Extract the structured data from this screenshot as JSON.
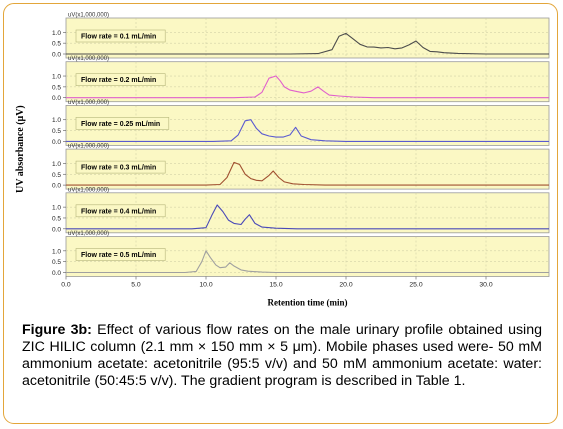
{
  "caption": {
    "label": "Figure 3b:",
    "text": "Effect of various flow rates on the male urinary profile obtained using ZIC HILIC column (2.1 mm × 150 mm × 5 μm). Mobile phases used were- 50 mM ammonium acetate: acetonitrile (95:5 v/v) and 50 mM ammonium acetate: water: acetonitrile (50:45:5 v/v). The gradient program is described in Table 1."
  },
  "chart_data": {
    "type": "line",
    "xlabel": "Retention time (min)",
    "ylabel": "UV absorbance (μV)",
    "y_unit_label": "uV(x1,000,000)",
    "xlim": [
      0,
      34.5
    ],
    "x_ticks": [
      0.0,
      5.0,
      10.0,
      15.0,
      20.0,
      25.0,
      30.0
    ],
    "ylim": [
      0,
      1.2
    ],
    "y_ticks": [
      0.0,
      0.5,
      1.0
    ],
    "grid": true,
    "panel_color": "#fbf8c4",
    "series": [
      {
        "name": "Flow rate = 0.1 mL/min",
        "color": "#4d4d4d",
        "x": [
          16.0,
          18.0,
          19.0,
          19.5,
          20.0,
          20.5,
          21.0,
          21.5,
          22.0,
          22.5,
          23.0,
          23.5,
          24.0,
          24.5,
          25.0,
          25.5,
          26.0,
          26.5,
          27.0,
          28.0,
          30.0
        ],
        "y": [
          0.0,
          0.02,
          0.2,
          0.82,
          0.95,
          0.7,
          0.45,
          0.33,
          0.32,
          0.28,
          0.3,
          0.24,
          0.28,
          0.42,
          0.6,
          0.3,
          0.12,
          0.1,
          0.06,
          0.03,
          0.0
        ]
      },
      {
        "name": "Flow rate = 0.2 mL/min",
        "color": "#e060cc",
        "x": [
          12.0,
          13.5,
          14.0,
          14.5,
          15.0,
          15.3,
          15.6,
          16.0,
          16.5,
          17.0,
          17.5,
          18.0,
          18.4,
          18.8,
          19.5,
          20.5,
          22.0
        ],
        "y": [
          0.0,
          0.03,
          0.25,
          0.9,
          1.0,
          0.78,
          0.5,
          0.35,
          0.28,
          0.22,
          0.3,
          0.5,
          0.3,
          0.12,
          0.08,
          0.03,
          0.0
        ]
      },
      {
        "name": "Flow rate = 0.25 mL/min",
        "color": "#5a5ad0",
        "x": [
          10.5,
          11.8,
          12.3,
          12.8,
          13.2,
          13.6,
          14.0,
          14.5,
          15.0,
          15.5,
          16.0,
          16.4,
          16.8,
          17.5,
          18.5,
          20.0
        ],
        "y": [
          0.0,
          0.03,
          0.3,
          0.95,
          1.0,
          0.6,
          0.35,
          0.25,
          0.2,
          0.2,
          0.3,
          0.65,
          0.25,
          0.08,
          0.03,
          0.0
        ]
      },
      {
        "name": "Flow rate = 0.3 mL/min",
        "color": "#a05030",
        "x": [
          10.0,
          11.0,
          11.5,
          12.0,
          12.4,
          12.8,
          13.2,
          13.6,
          14.0,
          14.5,
          14.8,
          15.2,
          15.6,
          16.2,
          17.0,
          18.5
        ],
        "y": [
          0.0,
          0.03,
          0.35,
          1.05,
          0.95,
          0.5,
          0.3,
          0.22,
          0.2,
          0.45,
          0.65,
          0.35,
          0.15,
          0.06,
          0.03,
          0.0
        ]
      },
      {
        "name": "Flow rate = 0.4 mL/min",
        "color": "#4a4ab8",
        "x": [
          9.0,
          10.0,
          10.4,
          10.8,
          11.2,
          11.6,
          12.0,
          12.5,
          12.8,
          13.1,
          13.5,
          14.0,
          15.0,
          16.5
        ],
        "y": [
          0.0,
          0.05,
          0.6,
          1.1,
          0.8,
          0.4,
          0.25,
          0.2,
          0.45,
          0.65,
          0.25,
          0.08,
          0.03,
          0.0
        ]
      },
      {
        "name": "Flow rate = 0.5 mL/min",
        "color": "#a0a0a0",
        "x": [
          8.5,
          9.3,
          9.7,
          10.0,
          10.3,
          10.7,
          11.0,
          11.4,
          11.7,
          12.0,
          12.5,
          13.0,
          14.0,
          15.0
        ],
        "y": [
          0.0,
          0.05,
          0.5,
          1.0,
          0.7,
          0.35,
          0.22,
          0.25,
          0.45,
          0.3,
          0.12,
          0.06,
          0.02,
          0.0
        ]
      }
    ]
  }
}
